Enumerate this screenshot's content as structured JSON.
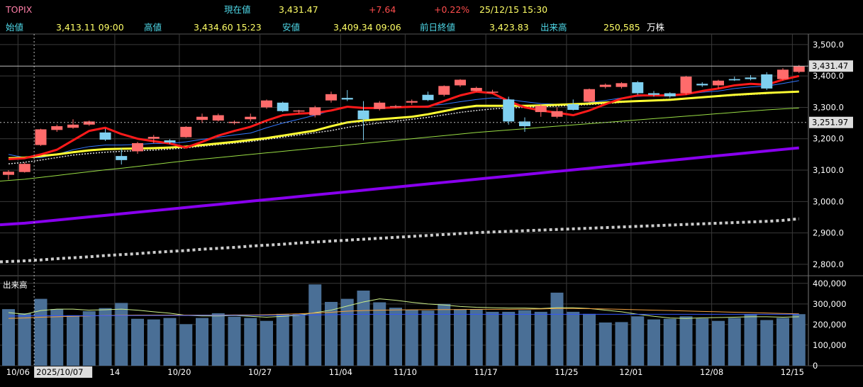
{
  "header": {
    "symbol": "TOPIX",
    "current_label": "現在値",
    "current_value": "3,431.47",
    "change": "+7.64",
    "change_pct": "+0.22%",
    "datetime": "25/12/15  15:30",
    "open_label": "始値",
    "open_value": "3,413.11 09:00",
    "high_label": "高値",
    "high_value": "3,434.60 15:23",
    "low_label": "安値",
    "low_value": "3,409.34 09:06",
    "prev_label": "前日終値",
    "prev_value": "3,423.83",
    "volume_label": "出来高",
    "volume_value": "250,585",
    "volume_unit": "万株"
  },
  "colors": {
    "up_candle": "#ff6b6b",
    "down_candle": "#7fd0f0",
    "ma_red": "#ff1a1a",
    "ma_yellow": "#ffff33",
    "ma_purple": "#8800ee",
    "ma_white_dotted": "#cccccc",
    "volume_bar": "#4a6f96"
  },
  "chart_data": {
    "type": "candlestick",
    "price_axis": {
      "ylim": [
        2775,
        3520
      ],
      "ticks": [
        "3,500.0",
        "3,400.0",
        "3,300.0",
        "3,200.0",
        "3,100.0",
        "3,000.0",
        "2,900.0",
        "2,800.0"
      ],
      "tick_values": [
        3500,
        3400,
        3300,
        3200,
        3100,
        3000,
        2900,
        2800
      ],
      "current_price_label": "3,431.47",
      "current_price": 3431.47,
      "reference_label": "3,251.97",
      "reference_price": 3251.97
    },
    "volume_axis": {
      "label": "出来高",
      "ylim": [
        0,
        420000
      ],
      "ticks": [
        "400,000",
        "300,000",
        "200,000",
        "100,000",
        "0"
      ],
      "tick_values": [
        400000,
        300000,
        200000,
        100000,
        0
      ]
    },
    "x_ticks": [
      {
        "label": "10/06",
        "index": 1
      },
      {
        "label": "2025/10/07",
        "index": 2,
        "highlight": true
      },
      {
        "label": "14",
        "index": 7
      },
      {
        "label": "10/20",
        "index": 11
      },
      {
        "label": "10/27",
        "index": 16
      },
      {
        "label": "11/04",
        "index": 21
      },
      {
        "label": "11/10",
        "index": 25
      },
      {
        "label": "11/17",
        "index": 30
      },
      {
        "label": "11/25",
        "index": 35
      },
      {
        "label": "12/01",
        "index": 39
      },
      {
        "label": "12/08",
        "index": 44
      },
      {
        "label": "12/15",
        "index": 49
      }
    ],
    "candles": [
      {
        "o": 3085,
        "h": 3100,
        "l": 3070,
        "c": 3095
      },
      {
        "o": 3094,
        "h": 3125,
        "l": 3092,
        "c": 3120
      },
      {
        "o": 3180,
        "h": 3232,
        "l": 3177,
        "c": 3230
      },
      {
        "o": 3228,
        "h": 3245,
        "l": 3222,
        "c": 3240
      },
      {
        "o": 3235,
        "h": 3262,
        "l": 3232,
        "c": 3245
      },
      {
        "o": 3245,
        "h": 3258,
        "l": 3241,
        "c": 3255
      },
      {
        "o": 3220,
        "h": 3232,
        "l": 3193,
        "c": 3197
      },
      {
        "o": 3145,
        "h": 3170,
        "l": 3118,
        "c": 3132
      },
      {
        "o": 3160,
        "h": 3190,
        "l": 3152,
        "c": 3186
      },
      {
        "o": 3200,
        "h": 3212,
        "l": 3185,
        "c": 3206
      },
      {
        "o": 3195,
        "h": 3199,
        "l": 3183,
        "c": 3188
      },
      {
        "o": 3205,
        "h": 3240,
        "l": 3203,
        "c": 3238
      },
      {
        "o": 3260,
        "h": 3280,
        "l": 3250,
        "c": 3270
      },
      {
        "o": 3258,
        "h": 3280,
        "l": 3255,
        "c": 3275
      },
      {
        "o": 3250,
        "h": 3258,
        "l": 3245,
        "c": 3254
      },
      {
        "o": 3262,
        "h": 3280,
        "l": 3255,
        "c": 3270
      },
      {
        "o": 3300,
        "h": 3325,
        "l": 3295,
        "c": 3322
      },
      {
        "o": 3315,
        "h": 3318,
        "l": 3285,
        "c": 3288
      },
      {
        "o": 3287,
        "h": 3292,
        "l": 3280,
        "c": 3290
      },
      {
        "o": 3275,
        "h": 3305,
        "l": 3268,
        "c": 3300
      },
      {
        "o": 3322,
        "h": 3350,
        "l": 3315,
        "c": 3342
      },
      {
        "o": 3330,
        "h": 3355,
        "l": 3320,
        "c": 3325
      },
      {
        "o": 3290,
        "h": 3320,
        "l": 3195,
        "c": 3262
      },
      {
        "o": 3295,
        "h": 3320,
        "l": 3290,
        "c": 3315
      },
      {
        "o": 3302,
        "h": 3308,
        "l": 3298,
        "c": 3304
      },
      {
        "o": 3315,
        "h": 3325,
        "l": 3308,
        "c": 3320
      },
      {
        "o": 3340,
        "h": 3350,
        "l": 3320,
        "c": 3323
      },
      {
        "o": 3340,
        "h": 3370,
        "l": 3335,
        "c": 3368
      },
      {
        "o": 3370,
        "h": 3390,
        "l": 3365,
        "c": 3388
      },
      {
        "o": 3352,
        "h": 3366,
        "l": 3350,
        "c": 3362
      },
      {
        "o": 3350,
        "h": 3356,
        "l": 3344,
        "c": 3350
      },
      {
        "o": 3325,
        "h": 3334,
        "l": 3245,
        "c": 3255
      },
      {
        "o": 3255,
        "h": 3268,
        "l": 3222,
        "c": 3240
      },
      {
        "o": 3285,
        "h": 3310,
        "l": 3270,
        "c": 3305
      },
      {
        "o": 3270,
        "h": 3300,
        "l": 3265,
        "c": 3288
      },
      {
        "o": 3310,
        "h": 3325,
        "l": 3290,
        "c": 3292
      },
      {
        "o": 3318,
        "h": 3360,
        "l": 3315,
        "c": 3358
      },
      {
        "o": 3365,
        "h": 3376,
        "l": 3360,
        "c": 3372
      },
      {
        "o": 3365,
        "h": 3380,
        "l": 3360,
        "c": 3377
      },
      {
        "o": 3380,
        "h": 3384,
        "l": 3340,
        "c": 3345
      },
      {
        "o": 3345,
        "h": 3352,
        "l": 3334,
        "c": 3340
      },
      {
        "o": 3345,
        "h": 3348,
        "l": 3330,
        "c": 3335
      },
      {
        "o": 3345,
        "h": 3400,
        "l": 3340,
        "c": 3398
      },
      {
        "o": 3375,
        "h": 3380,
        "l": 3365,
        "c": 3370
      },
      {
        "o": 3370,
        "h": 3388,
        "l": 3360,
        "c": 3385
      },
      {
        "o": 3390,
        "h": 3398,
        "l": 3384,
        "c": 3386
      },
      {
        "o": 3395,
        "h": 3403,
        "l": 3386,
        "c": 3390
      },
      {
        "o": 3405,
        "h": 3412,
        "l": 3355,
        "c": 3360
      },
      {
        "o": 3390,
        "h": 3425,
        "l": 3385,
        "c": 3420
      },
      {
        "o": 3413,
        "h": 3435,
        "l": 3409,
        "c": 3431
      }
    ],
    "series": [
      {
        "key": "ma_red",
        "values": [
          3135,
          3138,
          3150,
          3165,
          3195,
          3225,
          3235,
          3215,
          3200,
          3192,
          3185,
          3172,
          3190,
          3210,
          3225,
          3238,
          3258,
          3275,
          3280,
          3282,
          3290,
          3302,
          3298,
          3298,
          3300,
          3302,
          3302,
          3320,
          3338,
          3350,
          3345,
          3320,
          3300,
          3290,
          3283,
          3275,
          3290,
          3310,
          3328,
          3338,
          3338,
          3338,
          3342,
          3352,
          3360,
          3370,
          3375,
          3372,
          3388,
          3400
        ]
      },
      {
        "key": "ma_yellow",
        "values": [
          3138,
          3140,
          3145,
          3150,
          3157,
          3163,
          3167,
          3168,
          3169,
          3170,
          3172,
          3175,
          3180,
          3185,
          3190,
          3196,
          3202,
          3210,
          3218,
          3226,
          3240,
          3252,
          3258,
          3262,
          3266,
          3270,
          3278,
          3288,
          3298,
          3305,
          3305,
          3305,
          3305,
          3306,
          3308,
          3310,
          3312,
          3315,
          3318,
          3320,
          3322,
          3324,
          3328,
          3332,
          3336,
          3340,
          3343,
          3346,
          3348,
          3350
        ]
      },
      {
        "key": "ma_blue",
        "values": [
          3150,
          3140,
          3140,
          3150,
          3165,
          3175,
          3180,
          3180,
          3182,
          3185,
          3185,
          3190,
          3198,
          3205,
          3212,
          3218,
          3235,
          3250,
          3262,
          3275,
          3290,
          3300,
          3300,
          3300,
          3300,
          3302,
          3305,
          3310,
          3318,
          3325,
          3330,
          3325,
          3318,
          3312,
          3310,
          3310,
          3315,
          3322,
          3330,
          3335,
          3338,
          3340,
          3342,
          3348,
          3352,
          3360,
          3365,
          3368,
          3376,
          3385
        ]
      },
      {
        "key": "ma_white_dotted",
        "values": [
          3120,
          3125,
          3132,
          3140,
          3148,
          3153,
          3157,
          3160,
          3162,
          3164,
          3167,
          3171,
          3176,
          3181,
          3186,
          3191,
          3198,
          3205,
          3212,
          3219,
          3226,
          3236,
          3244,
          3250,
          3256,
          3262,
          3268,
          3276,
          3284,
          3290,
          3295,
          3298,
          3300,
          3302,
          3304,
          3306,
          3309,
          3312,
          3316,
          3320,
          3323,
          3326,
          3329,
          3332,
          3335,
          3338,
          3341,
          3344,
          3347,
          3350
        ]
      },
      {
        "key": "ma_green",
        "values": [
          3065,
          3071,
          3077,
          3083,
          3089,
          3095,
          3101,
          3106,
          3112,
          3118,
          3124,
          3130,
          3135,
          3140,
          3145,
          3150,
          3155,
          3160,
          3165,
          3170,
          3175,
          3180,
          3185,
          3190,
          3195,
          3200,
          3205,
          3210,
          3215,
          3220,
          3224,
          3228,
          3232,
          3236,
          3240,
          3244,
          3248,
          3252,
          3256,
          3260,
          3264,
          3268,
          3272,
          3276,
          3280,
          3284,
          3288,
          3292,
          3295,
          3298
        ]
      },
      {
        "key": "ma_purple",
        "values": [
          2926,
          2931,
          2936,
          2941,
          2946,
          2951,
          2956,
          2961,
          2966,
          2971,
          2976,
          2981,
          2986,
          2991,
          2996,
          3001,
          3006,
          3011,
          3016,
          3021,
          3026,
          3031,
          3036,
          3041,
          3046,
          3051,
          3056,
          3061,
          3066,
          3071,
          3076,
          3081,
          3086,
          3091,
          3096,
          3101,
          3106,
          3111,
          3116,
          3121,
          3126,
          3131,
          3136,
          3141,
          3146,
          3151,
          3156,
          3161,
          3166,
          3171
        ]
      },
      {
        "key": "ma_gray_dotted",
        "values": [
          2808,
          2811,
          2814,
          2818,
          2821,
          2824,
          2828,
          2831,
          2834,
          2838,
          2841,
          2844,
          2848,
          2851,
          2854,
          2858,
          2861,
          2864,
          2868,
          2871,
          2874,
          2877,
          2880,
          2883,
          2886,
          2889,
          2892,
          2895,
          2898,
          2901,
          2903,
          2905,
          2907,
          2909,
          2911,
          2913,
          2915,
          2917,
          2919,
          2921,
          2923,
          2925,
          2927,
          2929,
          2931,
          2933,
          2935,
          2937,
          2940,
          2945
        ]
      }
    ],
    "volume": [
      275000,
      255000,
      325000,
      275000,
      245000,
      265000,
      280000,
      305000,
      228000,
      225000,
      232000,
      202000,
      232000,
      255000,
      238000,
      232000,
      218000,
      252000,
      252000,
      395000,
      310000,
      325000,
      365000,
      308000,
      282000,
      272000,
      268000,
      300000,
      275000,
      275000,
      262000,
      262000,
      270000,
      262000,
      355000,
      262000,
      252000,
      210000,
      212000,
      240000,
      225000,
      228000,
      240000,
      230000,
      218000,
      232000,
      250000,
      222000,
      232000,
      250585
    ],
    "volume_series": [
      {
        "key": "vol_ma_green",
        "values": [
          258000,
          250000,
          268000,
          275000,
          275000,
          270000,
          272000,
          275000,
          270000,
          262000,
          255000,
          245000,
          242000,
          242000,
          244000,
          240000,
          236000,
          240000,
          245000,
          258000,
          270000,
          290000,
          310000,
          325000,
          318000,
          308000,
          300000,
          295000,
          288000,
          284000,
          282000,
          280000,
          280000,
          278000,
          282000,
          282000,
          278000,
          270000,
          262000,
          250000,
          240000,
          232000,
          230000,
          233000,
          234000,
          236000,
          238000,
          238000,
          236000,
          238000
        ]
      },
      {
        "key": "vol_ma_orange",
        "values": [
          230000,
          232000,
          236000,
          238000,
          240000,
          242000,
          244000,
          245000,
          246000,
          246000,
          246000,
          246000,
          246000,
          246000,
          247000,
          247000,
          248000,
          250000,
          252000,
          256000,
          260000,
          265000,
          268000,
          270000,
          271000,
          272000,
          272000,
          273000,
          273000,
          274000,
          274000,
          274000,
          275000,
          276000,
          278000,
          278000,
          277000,
          276000,
          274000,
          272000,
          270000,
          268000,
          266000,
          264000,
          262000,
          260000,
          258000,
          256000,
          254000,
          252000
        ]
      },
      {
        "key": "vol_ma_blue",
        "values": [
          242000,
          242000,
          243000,
          243000,
          243000,
          243000,
          243000,
          243000,
          244000,
          244000,
          244000,
          244000,
          245000,
          245000,
          245000,
          245000,
          245000,
          245000,
          246000,
          247000,
          248000,
          249000,
          250000,
          250000,
          250000,
          250000,
          250000,
          250000,
          250000,
          250000,
          250000,
          250000,
          250000,
          250000,
          250000,
          250000,
          250000,
          250000,
          250000,
          250000,
          250000,
          250000,
          250000,
          250000,
          250000,
          250000,
          250000,
          250000,
          250000,
          250000
        ]
      }
    ]
  }
}
